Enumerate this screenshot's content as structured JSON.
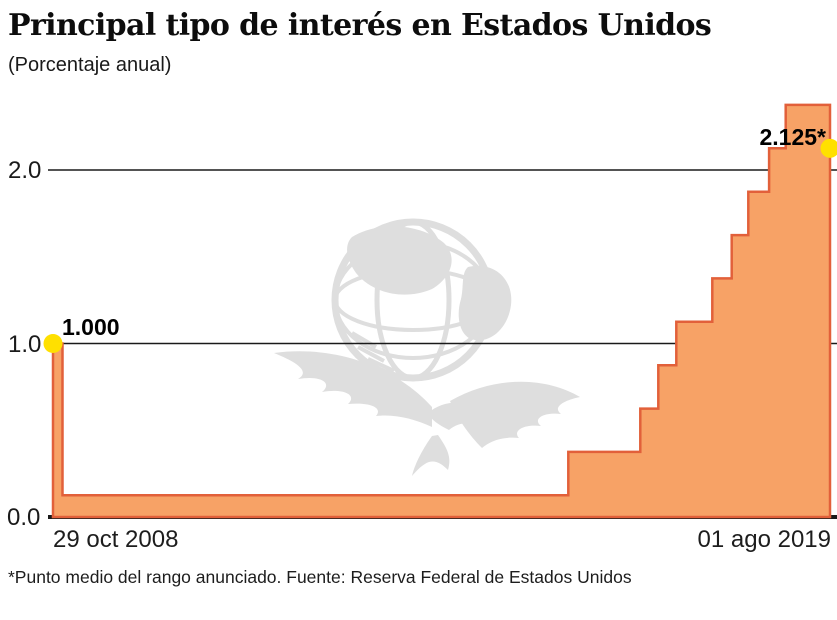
{
  "header": {
    "title": "Principal tipo de interés en Estados Unidos",
    "subtitle": "(Porcentaje anual)"
  },
  "chart_data": {
    "type": "area",
    "step": "after",
    "title": "Principal tipo de interés en Estados Unidos",
    "unit_label": "(Porcentaje anual)",
    "ylim": [
      0,
      2.5
    ],
    "grid": "horizontal lines at 1.0 and 2.0, thick baseline at 0.0",
    "legend_position": "none",
    "y_ticks": [
      {
        "value": 0.0,
        "label": "0.0"
      },
      {
        "value": 1.0,
        "label": "1.0"
      },
      {
        "value": 2.0,
        "label": "2.0"
      }
    ],
    "x_axis": {
      "start_label": "29 oct 2008",
      "end_label": "01 ago 2019"
    },
    "points": [
      {
        "date": "2008-10-29",
        "value": 1.0
      },
      {
        "date": "2008-12-16",
        "value": 0.125
      },
      {
        "date": "2015-12-17",
        "value": 0.375
      },
      {
        "date": "2016-12-15",
        "value": 0.625
      },
      {
        "date": "2017-03-16",
        "value": 0.875
      },
      {
        "date": "2017-06-15",
        "value": 1.125
      },
      {
        "date": "2017-12-14",
        "value": 1.375
      },
      {
        "date": "2018-03-22",
        "value": 1.625
      },
      {
        "date": "2018-06-14",
        "value": 1.875
      },
      {
        "date": "2018-09-27",
        "value": 2.125
      },
      {
        "date": "2018-12-20",
        "value": 2.375
      },
      {
        "date": "2019-08-01",
        "value": 2.125
      }
    ],
    "annotations": {
      "start_value_label": "1.000",
      "end_value_label": "2.125*"
    },
    "colors": {
      "fill": "#F7A266",
      "stroke": "#E2603A",
      "marker": "#FFE000",
      "grid": "#1A1A1A",
      "watermark": "#DEDEDE"
    }
  },
  "footer": {
    "note": "*Punto medio del rango anunciado. Fuente: Reserva Federal de Estados Unidos"
  }
}
